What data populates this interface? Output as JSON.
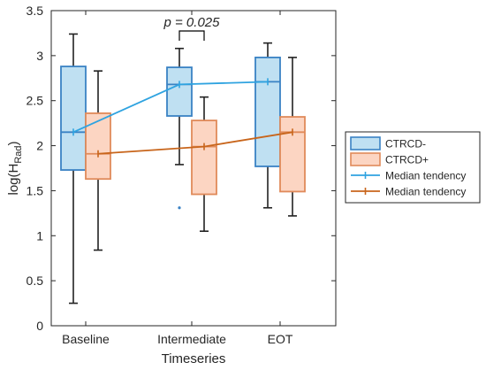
{
  "chart_data": {
    "type": "box",
    "xlabel": "Timeseries",
    "ylabel_main": "log(H",
    "ylabel_sub": "Rad",
    "ylabel_close": ")",
    "ylim": [
      0,
      3.5
    ],
    "yticks": [
      0,
      0.5,
      1,
      1.5,
      2,
      2.5,
      3,
      3.5
    ],
    "ytick_labels": [
      "0",
      "0.5",
      "1",
      "1.5",
      "2",
      "2.5",
      "3",
      "3.5"
    ],
    "categories": [
      "Baseline",
      "Intermediate",
      "EOT"
    ],
    "annotation": {
      "text": "p = 0.025",
      "between": "Intermediate"
    },
    "series": [
      {
        "name": "CTRCD-",
        "fill": "#bfe0f2",
        "stroke": "#3a82c4",
        "boxes": [
          {
            "category": "Baseline",
            "whisker_low": 0.25,
            "q1": 1.73,
            "median": 2.15,
            "q3": 2.88,
            "whisker_high": 3.24,
            "outliers": []
          },
          {
            "category": "Intermediate",
            "whisker_low": 1.79,
            "q1": 2.33,
            "median": 2.68,
            "q3": 2.87,
            "whisker_high": 3.08,
            "outliers": [
              1.31
            ]
          },
          {
            "category": "EOT",
            "whisker_low": 1.31,
            "q1": 1.77,
            "median": 2.71,
            "q3": 2.98,
            "whisker_high": 3.14,
            "outliers": []
          }
        ]
      },
      {
        "name": "CTRCD+",
        "fill": "#fcd5c2",
        "stroke": "#e08a5a",
        "boxes": [
          {
            "category": "Baseline",
            "whisker_low": 0.84,
            "q1": 1.63,
            "median": 1.91,
            "q3": 2.36,
            "whisker_high": 2.83,
            "outliers": []
          },
          {
            "category": "Intermediate",
            "whisker_low": 1.05,
            "q1": 1.46,
            "median": 1.99,
            "q3": 2.28,
            "whisker_high": 2.54,
            "outliers": []
          },
          {
            "category": "EOT",
            "whisker_low": 1.22,
            "q1": 1.49,
            "median": 2.15,
            "q3": 2.32,
            "whisker_high": 2.98,
            "outliers": []
          }
        ]
      }
    ],
    "median_tendency": [
      {
        "name": "Median tendency",
        "color": "#2fa3e0",
        "values": [
          2.15,
          2.68,
          2.71
        ]
      },
      {
        "name": "Median tendency",
        "color": "#c8651b",
        "values": [
          1.91,
          1.99,
          2.15
        ]
      }
    ],
    "legend_position": "right",
    "grid": false
  }
}
